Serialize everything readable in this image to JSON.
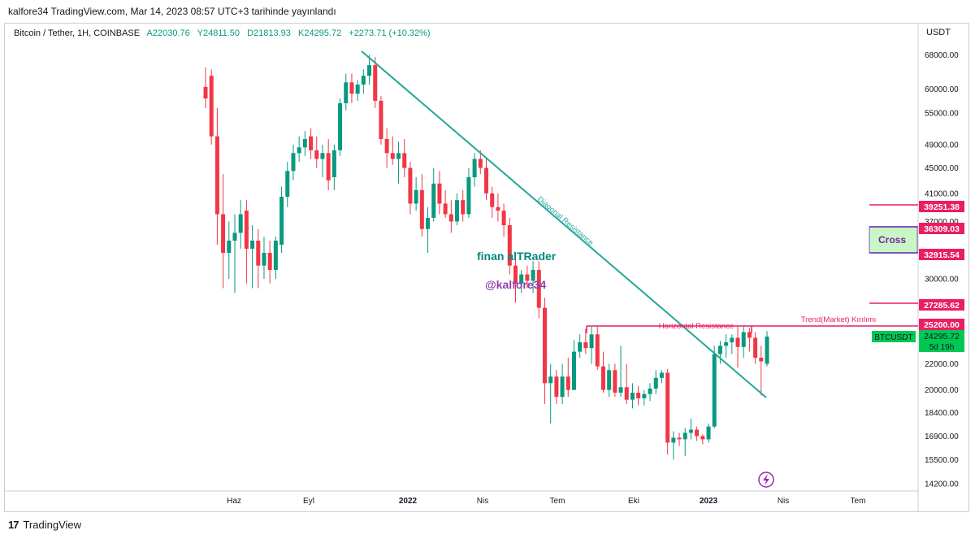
{
  "header": {
    "published": "kalfore34 TradingView.com, Mar 14, 2023 08:57 UTC+3 tarihinde yayınlandı"
  },
  "legend": {
    "symbol": "Bitcoin / Tether, 1H, COINBASE",
    "open": "A22030.76",
    "high": "Y24811.50",
    "low": "D21813.93",
    "close": "K24295.72",
    "change": "+2273.71 (+10.32%)"
  },
  "footer": {
    "brand": "TradingView"
  },
  "colors": {
    "up": "#089981",
    "down": "#f23645",
    "trendline": "#26a69a",
    "resistance": "#e91e63",
    "label_bg": "#e91e63",
    "price_bg": "#00c853"
  },
  "chart_data": {
    "type": "candlestick",
    "y_unit": "USDT",
    "y_scale": "log",
    "ylim": [
      13500,
      75000
    ],
    "x_tick_labels": [
      "Haz",
      "Eyl",
      "2022",
      "Nis",
      "Tem",
      "Eki",
      "2023",
      "Nis",
      "Tem"
    ],
    "y_tick_labels": [
      "68000.00",
      "60000.00",
      "55000.00",
      "49000.00",
      "45000.00",
      "41000.00",
      "37000.00",
      "30000.00",
      "22000.00",
      "20000.00",
      "18400.00",
      "16900.00",
      "15500.00",
      "14200.00"
    ],
    "candles": [
      {
        "o": 60500,
        "h": 65000,
        "l": 56000,
        "c": 58000
      },
      {
        "o": 63000,
        "h": 64500,
        "l": 49000,
        "c": 50500
      },
      {
        "o": 50500,
        "h": 56000,
        "l": 34000,
        "c": 38000
      },
      {
        "o": 38000,
        "h": 44000,
        "l": 29000,
        "c": 33000
      },
      {
        "o": 33000,
        "h": 37000,
        "l": 30000,
        "c": 34500
      },
      {
        "o": 34500,
        "h": 38000,
        "l": 28500,
        "c": 35500
      },
      {
        "o": 35500,
        "h": 40000,
        "l": 33500,
        "c": 38000
      },
      {
        "o": 38500,
        "h": 40000,
        "l": 29500,
        "c": 33500
      },
      {
        "o": 33500,
        "h": 36500,
        "l": 29000,
        "c": 34500
      },
      {
        "o": 34500,
        "h": 36000,
        "l": 29000,
        "c": 31500
      },
      {
        "o": 31500,
        "h": 35000,
        "l": 30000,
        "c": 33000
      },
      {
        "o": 33000,
        "h": 34500,
        "l": 29500,
        "c": 31000
      },
      {
        "o": 31000,
        "h": 35000,
        "l": 30000,
        "c": 34500
      },
      {
        "o": 34000,
        "h": 42000,
        "l": 33000,
        "c": 40500
      },
      {
        "o": 40500,
        "h": 46000,
        "l": 39000,
        "c": 44500
      },
      {
        "o": 44500,
        "h": 49000,
        "l": 43000,
        "c": 47500
      },
      {
        "o": 47500,
        "h": 50500,
        "l": 46000,
        "c": 48500
      },
      {
        "o": 48500,
        "h": 51500,
        "l": 47000,
        "c": 50000
      },
      {
        "o": 50500,
        "h": 52000,
        "l": 46500,
        "c": 48000
      },
      {
        "o": 48000,
        "h": 50500,
        "l": 45000,
        "c": 46500
      },
      {
        "o": 46500,
        "h": 49000,
        "l": 43500,
        "c": 47500
      },
      {
        "o": 47500,
        "h": 50000,
        "l": 41500,
        "c": 43000
      },
      {
        "o": 43500,
        "h": 49000,
        "l": 41500,
        "c": 48000
      },
      {
        "o": 48000,
        "h": 58000,
        "l": 47000,
        "c": 57000
      },
      {
        "o": 57000,
        "h": 63500,
        "l": 55500,
        "c": 61500
      },
      {
        "o": 61500,
        "h": 63500,
        "l": 57000,
        "c": 59000
      },
      {
        "o": 59000,
        "h": 62000,
        "l": 57500,
        "c": 61000
      },
      {
        "o": 61000,
        "h": 64500,
        "l": 59000,
        "c": 63000
      },
      {
        "o": 63000,
        "h": 68000,
        "l": 61000,
        "c": 65500
      },
      {
        "o": 65500,
        "h": 67500,
        "l": 56000,
        "c": 57500
      },
      {
        "o": 57500,
        "h": 58500,
        "l": 49000,
        "c": 50000
      },
      {
        "o": 50000,
        "h": 52000,
        "l": 45000,
        "c": 47500
      },
      {
        "o": 47500,
        "h": 50500,
        "l": 45500,
        "c": 46500
      },
      {
        "o": 46500,
        "h": 49500,
        "l": 42500,
        "c": 47500
      },
      {
        "o": 47500,
        "h": 50000,
        "l": 43500,
        "c": 45000
      },
      {
        "o": 45000,
        "h": 46000,
        "l": 38000,
        "c": 39500
      },
      {
        "o": 39500,
        "h": 43500,
        "l": 38500,
        "c": 41500
      },
      {
        "o": 41500,
        "h": 44000,
        "l": 35000,
        "c": 36000
      },
      {
        "o": 36000,
        "h": 39000,
        "l": 33000,
        "c": 37500
      },
      {
        "o": 37500,
        "h": 45000,
        "l": 37000,
        "c": 42500
      },
      {
        "o": 42500,
        "h": 44500,
        "l": 38000,
        "c": 39500
      },
      {
        "o": 39500,
        "h": 41500,
        "l": 37500,
        "c": 38000
      },
      {
        "o": 38000,
        "h": 40000,
        "l": 35500,
        "c": 37000
      },
      {
        "o": 37000,
        "h": 41000,
        "l": 36500,
        "c": 40000
      },
      {
        "o": 40000,
        "h": 41500,
        "l": 37000,
        "c": 38000
      },
      {
        "o": 38000,
        "h": 45000,
        "l": 37500,
        "c": 43500
      },
      {
        "o": 43500,
        "h": 47500,
        "l": 42000,
        "c": 46500
      },
      {
        "o": 46500,
        "h": 48000,
        "l": 44000,
        "c": 45000
      },
      {
        "o": 45000,
        "h": 46500,
        "l": 40000,
        "c": 41000
      },
      {
        "o": 41000,
        "h": 42000,
        "l": 37500,
        "c": 39000
      },
      {
        "o": 39000,
        "h": 41000,
        "l": 37000,
        "c": 38500
      },
      {
        "o": 38500,
        "h": 39500,
        "l": 35000,
        "c": 36500
      },
      {
        "o": 36500,
        "h": 37500,
        "l": 30500,
        "c": 31500
      },
      {
        "o": 31500,
        "h": 32500,
        "l": 27500,
        "c": 29500
      },
      {
        "o": 29500,
        "h": 31000,
        "l": 28500,
        "c": 30500
      },
      {
        "o": 30500,
        "h": 31500,
        "l": 29000,
        "c": 29800
      },
      {
        "o": 29800,
        "h": 32000,
        "l": 28500,
        "c": 31000
      },
      {
        "o": 31000,
        "h": 32000,
        "l": 26000,
        "c": 27000
      },
      {
        "o": 27000,
        "h": 28000,
        "l": 19000,
        "c": 20500
      },
      {
        "o": 20500,
        "h": 22000,
        "l": 17700,
        "c": 21000
      },
      {
        "o": 21000,
        "h": 21500,
        "l": 19000,
        "c": 19500
      },
      {
        "o": 19500,
        "h": 22000,
        "l": 19000,
        "c": 21000
      },
      {
        "o": 21000,
        "h": 22500,
        "l": 19500,
        "c": 20000
      },
      {
        "o": 20000,
        "h": 24000,
        "l": 20000,
        "c": 23000
      },
      {
        "o": 23000,
        "h": 24500,
        "l": 22500,
        "c": 23800
      },
      {
        "o": 23800,
        "h": 25000,
        "l": 22800,
        "c": 23300
      },
      {
        "o": 23300,
        "h": 25200,
        "l": 22000,
        "c": 24500
      },
      {
        "o": 24500,
        "h": 25200,
        "l": 21500,
        "c": 21800
      },
      {
        "o": 21800,
        "h": 23000,
        "l": 19800,
        "c": 20000
      },
      {
        "o": 20000,
        "h": 22000,
        "l": 19500,
        "c": 21500
      },
      {
        "o": 21500,
        "h": 22000,
        "l": 19500,
        "c": 19800
      },
      {
        "o": 19800,
        "h": 23500,
        "l": 19500,
        "c": 20200
      },
      {
        "o": 20200,
        "h": 22000,
        "l": 19000,
        "c": 19300
      },
      {
        "o": 19300,
        "h": 20500,
        "l": 18700,
        "c": 19800
      },
      {
        "o": 19800,
        "h": 20300,
        "l": 18900,
        "c": 19400
      },
      {
        "o": 19400,
        "h": 20000,
        "l": 18900,
        "c": 19700
      },
      {
        "o": 19700,
        "h": 20500,
        "l": 19200,
        "c": 20100
      },
      {
        "o": 20100,
        "h": 21500,
        "l": 19700,
        "c": 20900
      },
      {
        "o": 20900,
        "h": 21500,
        "l": 20500,
        "c": 21300
      },
      {
        "o": 21300,
        "h": 21600,
        "l": 15800,
        "c": 16500
      },
      {
        "o": 16500,
        "h": 17200,
        "l": 15500,
        "c": 16800
      },
      {
        "o": 16800,
        "h": 17100,
        "l": 16300,
        "c": 16700
      },
      {
        "o": 16700,
        "h": 17400,
        "l": 15700,
        "c": 17100
      },
      {
        "o": 17100,
        "h": 18000,
        "l": 16700,
        "c": 17300
      },
      {
        "o": 17300,
        "h": 17500,
        "l": 16600,
        "c": 16900
      },
      {
        "o": 16900,
        "h": 17000,
        "l": 16400,
        "c": 16700
      },
      {
        "o": 16700,
        "h": 17700,
        "l": 16500,
        "c": 17500
      },
      {
        "o": 17500,
        "h": 23500,
        "l": 17400,
        "c": 22800
      },
      {
        "o": 22800,
        "h": 23900,
        "l": 22000,
        "c": 23500
      },
      {
        "o": 23500,
        "h": 24500,
        "l": 22500,
        "c": 23800
      },
      {
        "o": 23800,
        "h": 24500,
        "l": 22800,
        "c": 24200
      },
      {
        "o": 24200,
        "h": 25200,
        "l": 21700,
        "c": 23400
      },
      {
        "o": 23400,
        "h": 25200,
        "l": 22500,
        "c": 24700
      },
      {
        "o": 24700,
        "h": 25100,
        "l": 23000,
        "c": 24200
      },
      {
        "o": 24200,
        "h": 24700,
        "l": 22000,
        "c": 22500
      },
      {
        "o": 22500,
        "h": 23500,
        "l": 19600,
        "c": 22200
      },
      {
        "o": 22000,
        "h": 24800,
        "l": 21800,
        "c": 24300
      }
    ],
    "annotations": {
      "diagonal_resistance": "Diagonal Resistance",
      "horizontal_resistance": "Horizontal Resistance",
      "trend_break": "Trend(Market) Kırılımı",
      "cross": "Cross",
      "watermark_name": "finan  alTRader",
      "watermark_handle": "@kalfore34"
    },
    "price_levels": [
      39251.38,
      36309.03,
      32915.54,
      27285.62,
      25200.0
    ],
    "price_labels": [
      "39251.38",
      "36309.03",
      "32915.54",
      "27285.62",
      "25200.00"
    ],
    "last_price": {
      "symbol": "BTCUSDT",
      "value": "24295.72",
      "countdown": "5d 19h"
    }
  }
}
